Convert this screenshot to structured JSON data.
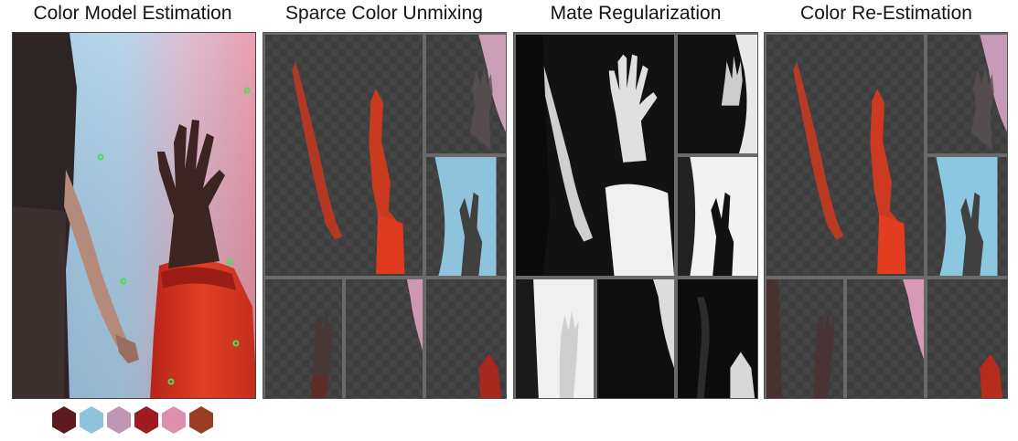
{
  "titles": {
    "color_model": "Color Model Estimation",
    "unmixing": "Sparce Color Unmixing",
    "matte": "Mate Regularization",
    "reestimation": "Color Re-Estimation"
  },
  "swatches": [
    {
      "color": "#5a1a1f"
    },
    {
      "color": "#8ec3db"
    },
    {
      "color": "#bf96b4"
    },
    {
      "color": "#9d1c22"
    },
    {
      "color": "#de8fad"
    },
    {
      "color": "#9a3d21"
    }
  ],
  "colors": {
    "background_blue": "#9fc8e2",
    "background_pink": "#e7a1b4",
    "sleeve_red": "#d8361e",
    "hand_dark": "#3a2221",
    "marker_green": "#3fc74a"
  }
}
